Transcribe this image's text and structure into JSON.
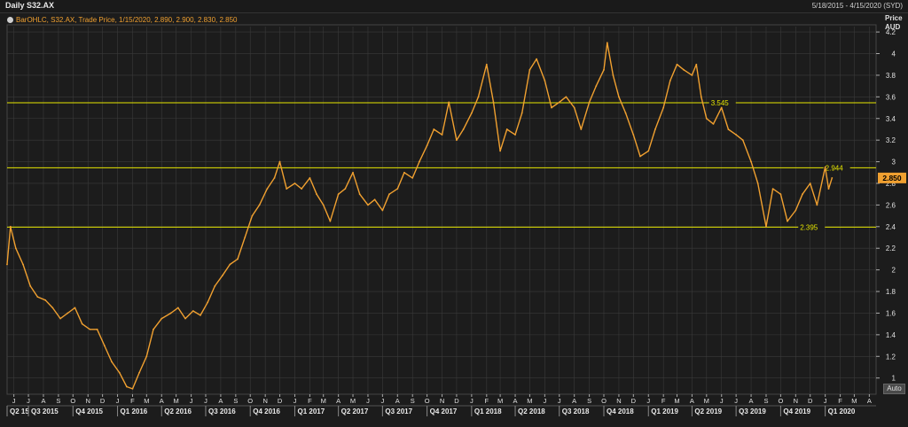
{
  "header": {
    "title": "Daily S32.AX",
    "date_range": "5/18/2015 - 4/15/2020 (SYD)"
  },
  "legend": {
    "text": "BarOHLC, S32.AX, Trade Price,  1/15/2020, 2.890, 2.900, 2.830, 2.850"
  },
  "auto_button": "Auto",
  "colors": {
    "background": "#1c1c1c",
    "price_line": "#f0a030",
    "levels": "#e6e600",
    "grid": "#3a3a3a",
    "last_price_box": "#f0a030"
  },
  "chart_data": {
    "type": "line",
    "yaxis": {
      "label_line1": "Price",
      "label_line2": "AUD",
      "ylim": [
        0.85,
        4.25
      ],
      "ticks": [
        1,
        1.2,
        1.4,
        1.6,
        1.8,
        2,
        2.2,
        2.4,
        2.6,
        2.8,
        3,
        3.2,
        3.4,
        3.6,
        3.8,
        4,
        4.2
      ],
      "tick_labels": [
        "1",
        "1.2",
        "1.4",
        "1.6",
        "1.8",
        "2",
        "2.2",
        "2.4",
        "2.6",
        "2.8",
        "3",
        "3.2",
        "3.4",
        "3.6",
        "3.8",
        "4",
        "4.2"
      ]
    },
    "xaxis": {
      "xlim": [
        "2015-05-18",
        "2020-04-15"
      ],
      "month_ticks": [
        {
          "date": "2015-06-01",
          "label": "J"
        },
        {
          "date": "2015-07-01",
          "label": "J"
        },
        {
          "date": "2015-08-01",
          "label": "A"
        },
        {
          "date": "2015-09-01",
          "label": "S"
        },
        {
          "date": "2015-10-01",
          "label": "O"
        },
        {
          "date": "2015-11-01",
          "label": "N"
        },
        {
          "date": "2015-12-01",
          "label": "D"
        },
        {
          "date": "2016-01-01",
          "label": "J"
        },
        {
          "date": "2016-02-01",
          "label": "F"
        },
        {
          "date": "2016-03-01",
          "label": "M"
        },
        {
          "date": "2016-04-01",
          "label": "A"
        },
        {
          "date": "2016-05-01",
          "label": "M"
        },
        {
          "date": "2016-06-01",
          "label": "J"
        },
        {
          "date": "2016-07-01",
          "label": "J"
        },
        {
          "date": "2016-08-01",
          "label": "A"
        },
        {
          "date": "2016-09-01",
          "label": "S"
        },
        {
          "date": "2016-10-01",
          "label": "O"
        },
        {
          "date": "2016-11-01",
          "label": "N"
        },
        {
          "date": "2016-12-01",
          "label": "D"
        },
        {
          "date": "2017-01-01",
          "label": "J"
        },
        {
          "date": "2017-02-01",
          "label": "F"
        },
        {
          "date": "2017-03-01",
          "label": "M"
        },
        {
          "date": "2017-04-01",
          "label": "A"
        },
        {
          "date": "2017-05-01",
          "label": "M"
        },
        {
          "date": "2017-06-01",
          "label": "J"
        },
        {
          "date": "2017-07-01",
          "label": "J"
        },
        {
          "date": "2017-08-01",
          "label": "A"
        },
        {
          "date": "2017-09-01",
          "label": "S"
        },
        {
          "date": "2017-10-01",
          "label": "O"
        },
        {
          "date": "2017-11-01",
          "label": "N"
        },
        {
          "date": "2017-12-01",
          "label": "D"
        },
        {
          "date": "2018-01-01",
          "label": "J"
        },
        {
          "date": "2018-02-01",
          "label": "F"
        },
        {
          "date": "2018-03-01",
          "label": "M"
        },
        {
          "date": "2018-04-01",
          "label": "A"
        },
        {
          "date": "2018-05-01",
          "label": "M"
        },
        {
          "date": "2018-06-01",
          "label": "J"
        },
        {
          "date": "2018-07-01",
          "label": "J"
        },
        {
          "date": "2018-08-01",
          "label": "A"
        },
        {
          "date": "2018-09-01",
          "label": "S"
        },
        {
          "date": "2018-10-01",
          "label": "O"
        },
        {
          "date": "2018-11-01",
          "label": "N"
        },
        {
          "date": "2018-12-01",
          "label": "D"
        },
        {
          "date": "2019-01-01",
          "label": "J"
        },
        {
          "date": "2019-02-01",
          "label": "F"
        },
        {
          "date": "2019-03-01",
          "label": "M"
        },
        {
          "date": "2019-04-01",
          "label": "A"
        },
        {
          "date": "2019-05-01",
          "label": "M"
        },
        {
          "date": "2019-06-01",
          "label": "J"
        },
        {
          "date": "2019-07-01",
          "label": "J"
        },
        {
          "date": "2019-08-01",
          "label": "A"
        },
        {
          "date": "2019-09-01",
          "label": "S"
        },
        {
          "date": "2019-10-01",
          "label": "O"
        },
        {
          "date": "2019-11-01",
          "label": "N"
        },
        {
          "date": "2019-12-01",
          "label": "D"
        },
        {
          "date": "2020-01-01",
          "label": "J"
        },
        {
          "date": "2020-02-01",
          "label": "F"
        },
        {
          "date": "2020-03-01",
          "label": "M"
        },
        {
          "date": "2020-04-01",
          "label": "A"
        }
      ],
      "quarter_ticks": [
        {
          "date": "2015-05-18",
          "label": "Q2 15"
        },
        {
          "date": "2015-07-01",
          "label": "Q3 2015"
        },
        {
          "date": "2015-10-01",
          "label": "Q4 2015"
        },
        {
          "date": "2016-01-01",
          "label": "Q1 2016"
        },
        {
          "date": "2016-04-01",
          "label": "Q2 2016"
        },
        {
          "date": "2016-07-01",
          "label": "Q3 2016"
        },
        {
          "date": "2016-10-01",
          "label": "Q4 2016"
        },
        {
          "date": "2017-01-01",
          "label": "Q1 2017"
        },
        {
          "date": "2017-04-01",
          "label": "Q2 2017"
        },
        {
          "date": "2017-07-01",
          "label": "Q3 2017"
        },
        {
          "date": "2017-10-01",
          "label": "Q4 2017"
        },
        {
          "date": "2018-01-01",
          "label": "Q1 2018"
        },
        {
          "date": "2018-04-01",
          "label": "Q2 2018"
        },
        {
          "date": "2018-07-01",
          "label": "Q3 2018"
        },
        {
          "date": "2018-10-01",
          "label": "Q4 2018"
        },
        {
          "date": "2019-01-01",
          "label": "Q1 2019"
        },
        {
          "date": "2019-04-01",
          "label": "Q2 2019"
        },
        {
          "date": "2019-07-01",
          "label": "Q3 2019"
        },
        {
          "date": "2019-10-01",
          "label": "Q4 2019"
        },
        {
          "date": "2020-01-01",
          "label": "Q1 2020"
        }
      ]
    },
    "series": [
      {
        "values": [
          [
            "2015-05-18",
            2.05
          ],
          [
            "2015-05-25",
            2.4
          ],
          [
            "2015-06-05",
            2.2
          ],
          [
            "2015-06-20",
            2.05
          ],
          [
            "2015-07-05",
            1.85
          ],
          [
            "2015-07-20",
            1.75
          ],
          [
            "2015-08-05",
            1.72
          ],
          [
            "2015-08-20",
            1.65
          ],
          [
            "2015-09-05",
            1.55
          ],
          [
            "2015-09-20",
            1.6
          ],
          [
            "2015-10-05",
            1.65
          ],
          [
            "2015-10-20",
            1.5
          ],
          [
            "2015-11-05",
            1.45
          ],
          [
            "2015-11-20",
            1.45
          ],
          [
            "2015-12-05",
            1.3
          ],
          [
            "2015-12-20",
            1.15
          ],
          [
            "2016-01-05",
            1.05
          ],
          [
            "2016-01-20",
            0.92
          ],
          [
            "2016-02-01",
            0.9
          ],
          [
            "2016-02-15",
            1.05
          ],
          [
            "2016-03-01",
            1.2
          ],
          [
            "2016-03-15",
            1.45
          ],
          [
            "2016-04-01",
            1.55
          ],
          [
            "2016-04-20",
            1.6
          ],
          [
            "2016-05-05",
            1.65
          ],
          [
            "2016-05-20",
            1.55
          ],
          [
            "2016-06-05",
            1.62
          ],
          [
            "2016-06-20",
            1.58
          ],
          [
            "2016-07-05",
            1.7
          ],
          [
            "2016-07-20",
            1.85
          ],
          [
            "2016-08-05",
            1.95
          ],
          [
            "2016-08-20",
            2.05
          ],
          [
            "2016-09-05",
            2.1
          ],
          [
            "2016-09-20",
            2.3
          ],
          [
            "2016-10-05",
            2.5
          ],
          [
            "2016-10-20",
            2.6
          ],
          [
            "2016-11-05",
            2.75
          ],
          [
            "2016-11-20",
            2.85
          ],
          [
            "2016-12-01",
            3.0
          ],
          [
            "2016-12-15",
            2.75
          ],
          [
            "2017-01-01",
            2.8
          ],
          [
            "2017-01-15",
            2.75
          ],
          [
            "2017-02-01",
            2.85
          ],
          [
            "2017-02-15",
            2.7
          ],
          [
            "2017-03-01",
            2.6
          ],
          [
            "2017-03-15",
            2.45
          ],
          [
            "2017-04-01",
            2.7
          ],
          [
            "2017-04-15",
            2.75
          ],
          [
            "2017-05-01",
            2.9
          ],
          [
            "2017-05-15",
            2.7
          ],
          [
            "2017-06-01",
            2.6
          ],
          [
            "2017-06-15",
            2.65
          ],
          [
            "2017-07-01",
            2.55
          ],
          [
            "2017-07-15",
            2.7
          ],
          [
            "2017-08-01",
            2.75
          ],
          [
            "2017-08-15",
            2.9
          ],
          [
            "2017-09-01",
            2.85
          ],
          [
            "2017-09-15",
            3.0
          ],
          [
            "2017-10-01",
            3.15
          ],
          [
            "2017-10-15",
            3.3
          ],
          [
            "2017-11-01",
            3.25
          ],
          [
            "2017-11-15",
            3.55
          ],
          [
            "2017-12-01",
            3.2
          ],
          [
            "2017-12-15",
            3.3
          ],
          [
            "2018-01-01",
            3.45
          ],
          [
            "2018-01-15",
            3.6
          ],
          [
            "2018-02-01",
            3.9
          ],
          [
            "2018-02-15",
            3.55
          ],
          [
            "2018-03-01",
            3.1
          ],
          [
            "2018-03-15",
            3.3
          ],
          [
            "2018-04-01",
            3.25
          ],
          [
            "2018-04-15",
            3.45
          ],
          [
            "2018-05-01",
            3.85
          ],
          [
            "2018-05-15",
            3.95
          ],
          [
            "2018-06-01",
            3.75
          ],
          [
            "2018-06-15",
            3.5
          ],
          [
            "2018-07-01",
            3.55
          ],
          [
            "2018-07-15",
            3.6
          ],
          [
            "2018-08-01",
            3.5
          ],
          [
            "2018-08-15",
            3.3
          ],
          [
            "2018-09-01",
            3.55
          ],
          [
            "2018-09-15",
            3.7
          ],
          [
            "2018-10-01",
            3.85
          ],
          [
            "2018-10-08",
            4.1
          ],
          [
            "2018-10-20",
            3.8
          ],
          [
            "2018-11-01",
            3.6
          ],
          [
            "2018-11-15",
            3.45
          ],
          [
            "2018-12-01",
            3.25
          ],
          [
            "2018-12-15",
            3.05
          ],
          [
            "2019-01-01",
            3.1
          ],
          [
            "2019-01-15",
            3.3
          ],
          [
            "2019-02-01",
            3.5
          ],
          [
            "2019-02-15",
            3.75
          ],
          [
            "2019-03-01",
            3.9
          ],
          [
            "2019-03-15",
            3.85
          ],
          [
            "2019-04-01",
            3.8
          ],
          [
            "2019-04-10",
            3.9
          ],
          [
            "2019-04-20",
            3.6
          ],
          [
            "2019-05-01",
            3.4
          ],
          [
            "2019-05-15",
            3.35
          ],
          [
            "2019-06-01",
            3.5
          ],
          [
            "2019-06-15",
            3.3
          ],
          [
            "2019-07-01",
            3.25
          ],
          [
            "2019-07-15",
            3.2
          ],
          [
            "2019-08-01",
            3.0
          ],
          [
            "2019-08-15",
            2.8
          ],
          [
            "2019-09-01",
            2.4
          ],
          [
            "2019-09-15",
            2.75
          ],
          [
            "2019-10-01",
            2.7
          ],
          [
            "2019-10-15",
            2.45
          ],
          [
            "2019-11-01",
            2.55
          ],
          [
            "2019-11-15",
            2.7
          ],
          [
            "2019-12-01",
            2.8
          ],
          [
            "2019-12-15",
            2.6
          ],
          [
            "2020-01-01",
            2.95
          ],
          [
            "2020-01-08",
            2.75
          ],
          [
            "2020-01-15",
            2.85
          ]
        ]
      }
    ],
    "levels": [
      {
        "value": 3.545,
        "label": "3.545",
        "label_date": "2019-05-10"
      },
      {
        "value": 2.944,
        "label": "2.944",
        "label_date": "2020-01-01"
      },
      {
        "value": 2.395,
        "label": "2.395",
        "label_date": "2019-11-10"
      }
    ],
    "last_price": {
      "value": 2.85,
      "label": "2.850"
    },
    "grid": true
  }
}
